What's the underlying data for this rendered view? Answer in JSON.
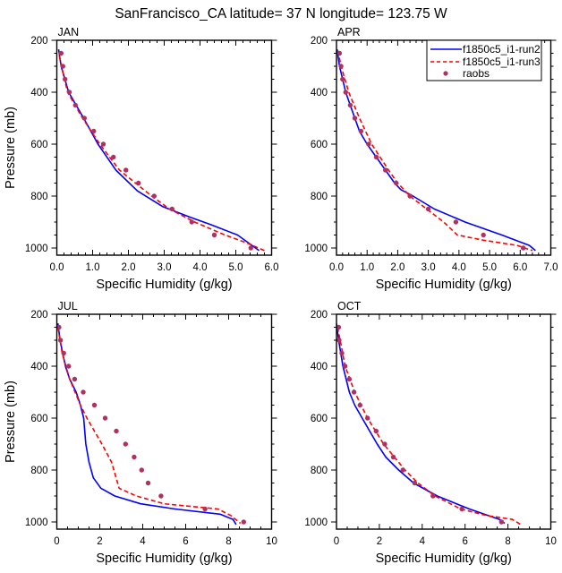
{
  "chart_data": {
    "type": "line",
    "title": "SanFrancisco_CA  latitude= 37 N longitude= 123.75 W",
    "legend": {
      "placement": "top-right",
      "panel": "APR",
      "entries": [
        {
          "name": "f1850c5_i1-run2",
          "style": "solid",
          "color": "#0000FF"
        },
        {
          "name": "f1850c5_i1-run3",
          "style": "dashed",
          "color": "#FF0000"
        },
        {
          "name": "raobs",
          "style": "marker",
          "color": "#B03060"
        }
      ]
    },
    "panels": [
      {
        "label": "JAN",
        "xlabel": "Specific Humidity (g/kg)",
        "ylabel": "Pressure (mb)",
        "xlim": [
          0,
          6
        ],
        "xticks": [
          "0.0",
          "1.0",
          "2.0",
          "3.0",
          "4.0",
          "5.0",
          "6.0"
        ],
        "xtick_values": [
          0,
          1,
          2,
          3,
          4,
          5,
          6
        ],
        "xminor_step": 0.2,
        "ylim": [
          200,
          1028
        ],
        "y_inverted": true,
        "yticks": [
          "200",
          "400",
          "600",
          "800",
          "1000"
        ],
        "ytick_values": [
          200,
          400,
          600,
          800,
          1000
        ],
        "yminor_step": 50,
        "series": [
          {
            "name": "f1850c5_i1-run2",
            "p": [
              235,
              300,
              400,
              500,
              600,
              620,
              700,
              780,
              840,
              880,
              910,
              950,
              1010
            ],
            "q": [
              0.05,
              0.12,
              0.33,
              0.75,
              1.15,
              1.25,
              1.65,
              2.25,
              2.95,
              3.7,
              4.3,
              5.05,
              5.65
            ]
          },
          {
            "name": "f1850c5_i1-run3",
            "p": [
              260,
              300,
              400,
              500,
              600,
              700,
              800,
              850,
              900,
              950,
              980,
              1010
            ],
            "q": [
              0.07,
              0.13,
              0.3,
              0.72,
              1.2,
              1.75,
              2.65,
              3.15,
              3.85,
              4.7,
              5.3,
              5.8
            ]
          },
          {
            "name": "raobs",
            "p": [
              250,
              300,
              350,
              400,
              450,
              500,
              550,
              600,
              650,
              700,
              750,
              800,
              850,
              900,
              950,
              1000
            ],
            "q": [
              0.12,
              0.17,
              0.23,
              0.35,
              0.52,
              0.77,
              1.03,
              1.3,
              1.58,
              1.93,
              2.28,
              2.72,
              3.22,
              3.77,
              4.4,
              5.42
            ]
          }
        ]
      },
      {
        "label": "APR",
        "xlabel": "Specific Humidity (g/kg)",
        "ylabel": "",
        "xlim": [
          0,
          7
        ],
        "xticks": [
          "0.0",
          "1.0",
          "2.0",
          "3.0",
          "4.0",
          "5.0",
          "6.0",
          "7.0"
        ],
        "xtick_values": [
          0,
          1,
          2,
          3,
          4,
          5,
          6,
          7
        ],
        "xminor_step": 0.2,
        "ylim": [
          200,
          1028
        ],
        "y_inverted": true,
        "yticks": [
          "200",
          "400",
          "600",
          "800",
          "1000"
        ],
        "ytick_values": [
          200,
          400,
          600,
          800,
          1000
        ],
        "yminor_step": 50,
        "series": [
          {
            "name": "f1850c5_i1-run2",
            "p": [
              235,
              300,
              400,
              500,
              550,
              600,
              700,
              750,
              775,
              800,
              850,
              880,
              900,
              950,
              990,
              1010
            ],
            "q": [
              0.02,
              0.1,
              0.3,
              0.6,
              0.75,
              1.0,
              1.6,
              1.9,
              2.1,
              2.5,
              3.2,
              3.8,
              4.2,
              5.4,
              6.3,
              6.5
            ]
          },
          {
            "name": "f1850c5_i1-run3",
            "p": [
              240,
              300,
              400,
              500,
              600,
              700,
              750,
              800,
              850,
              900,
              950,
              970,
              990,
              1010
            ],
            "q": [
              0.05,
              0.15,
              0.4,
              0.75,
              1.15,
              1.7,
              2.0,
              2.4,
              2.95,
              3.5,
              3.95,
              4.8,
              5.9,
              6.4
            ]
          },
          {
            "name": "raobs",
            "p": [
              250,
              300,
              350,
              400,
              450,
              500,
              550,
              600,
              650,
              700,
              750,
              800,
              850,
              900,
              950,
              1000
            ],
            "q": [
              0.1,
              0.15,
              0.2,
              0.3,
              0.45,
              0.6,
              0.8,
              1.05,
              1.3,
              1.6,
              1.95,
              2.4,
              3.0,
              3.9,
              4.8,
              6.1
            ]
          }
        ]
      },
      {
        "label": "JUL",
        "xlabel": "Specific Humidity (g/kg)",
        "ylabel": "Pressure (mb)",
        "xlim": [
          0,
          10
        ],
        "xticks": [
          "0",
          "2",
          "4",
          "6",
          "8",
          "10"
        ],
        "xtick_values": [
          0,
          2,
          4,
          6,
          8,
          10
        ],
        "xminor_step": 0.5,
        "ylim": [
          200,
          1028
        ],
        "y_inverted": true,
        "yticks": [
          "200",
          "400",
          "600",
          "800",
          "1000"
        ],
        "ytick_values": [
          200,
          400,
          600,
          800,
          1000
        ],
        "yminor_step": 50,
        "series": [
          {
            "name": "f1850c5_i1-run2",
            "p": [
              235,
              300,
              400,
              450,
              500,
              550,
              600,
              700,
              770,
              830,
              870,
              900,
              930,
              950,
              970,
              990,
              1010
            ],
            "q": [
              0.05,
              0.15,
              0.4,
              0.6,
              0.9,
              1.1,
              1.25,
              1.35,
              1.5,
              1.7,
              2.05,
              2.7,
              3.9,
              5.5,
              7.6,
              8.2,
              8.35
            ]
          },
          {
            "name": "f1850c5_i1-run3",
            "p": [
              250,
              350,
              450,
              550,
              600,
              700,
              770,
              870,
              900,
              930,
              950,
              975,
              1005
            ],
            "q": [
              0.05,
              0.25,
              0.6,
              1.1,
              1.4,
              2.1,
              2.55,
              2.9,
              3.7,
              5.0,
              7.5,
              8.1,
              8.55
            ]
          },
          {
            "name": "raobs",
            "p": [
              250,
              300,
              350,
              400,
              450,
              500,
              550,
              600,
              650,
              700,
              750,
              800,
              850,
              900,
              950,
              1000
            ],
            "q": [
              0.1,
              0.17,
              0.32,
              0.55,
              0.83,
              1.23,
              1.75,
              2.25,
              2.77,
              3.2,
              3.6,
              3.95,
              4.25,
              4.85,
              6.9,
              8.7
            ]
          }
        ]
      },
      {
        "label": "OCT",
        "xlabel": "Specific Humidity (g/kg)",
        "ylabel": "",
        "xlim": [
          0,
          10
        ],
        "xticks": [
          "0",
          "2",
          "4",
          "6",
          "8",
          "10"
        ],
        "xtick_values": [
          0,
          2,
          4,
          6,
          8,
          10
        ],
        "xminor_step": 0.5,
        "ylim": [
          200,
          1028
        ],
        "y_inverted": true,
        "yticks": [
          "200",
          "400",
          "600",
          "800",
          "1000"
        ],
        "ytick_values": [
          200,
          400,
          600,
          800,
          1000
        ],
        "yminor_step": 50,
        "series": [
          {
            "name": "f1850c5_i1-run2",
            "p": [
              235,
              300,
              400,
              500,
              550,
              600,
              700,
              750,
              800,
              850,
              900,
              950,
              990,
              1005
            ],
            "q": [
              0.0,
              0.1,
              0.3,
              0.6,
              0.85,
              1.2,
              1.9,
              2.3,
              2.9,
              3.6,
              4.7,
              6.2,
              7.6,
              7.85
            ]
          },
          {
            "name": "f1850c5_i1-run3",
            "p": [
              250,
              300,
              400,
              500,
              600,
              700,
              750,
              800,
              850,
              900,
              950,
              975,
              990,
              1010
            ],
            "q": [
              0.05,
              0.17,
              0.4,
              0.85,
              1.45,
              2.2,
              2.7,
              3.2,
              3.8,
              4.6,
              5.8,
              7.0,
              8.2,
              8.6
            ]
          },
          {
            "name": "raobs",
            "p": [
              250,
              300,
              350,
              400,
              450,
              500,
              550,
              600,
              650,
              700,
              750,
              800,
              850,
              900,
              950,
              1000
            ],
            "q": [
              0.1,
              0.12,
              0.25,
              0.4,
              0.6,
              0.82,
              1.1,
              1.45,
              1.85,
              2.25,
              2.65,
              3.1,
              3.65,
              4.5,
              5.85,
              7.7
            ]
          }
        ]
      }
    ]
  }
}
